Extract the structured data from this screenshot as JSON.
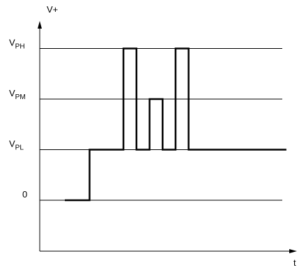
{
  "axes": {
    "y_label": "V+",
    "x_label": "t"
  },
  "levels": [
    {
      "id": "vph",
      "main": "V",
      "sub": "PH",
      "value": 3
    },
    {
      "id": "vpm",
      "main": "V",
      "sub": "PM",
      "value": 2
    },
    {
      "id": "vpl",
      "main": "V",
      "sub": "PL",
      "value": 1
    },
    {
      "id": "zero",
      "main": "0",
      "sub": "",
      "value": 0
    }
  ],
  "waveform": {
    "t": [
      0,
      1.9,
      1.9,
      4.5,
      4.5,
      5.5,
      5.5,
      6.5,
      6.5,
      7.5,
      7.5,
      8.5,
      8.5,
      9.5,
      9.5,
      17
    ],
    "v": [
      0,
      0,
      1,
      1,
      3,
      3,
      1,
      1,
      2,
      2,
      1,
      1,
      3,
      3,
      1,
      1
    ]
  }
}
